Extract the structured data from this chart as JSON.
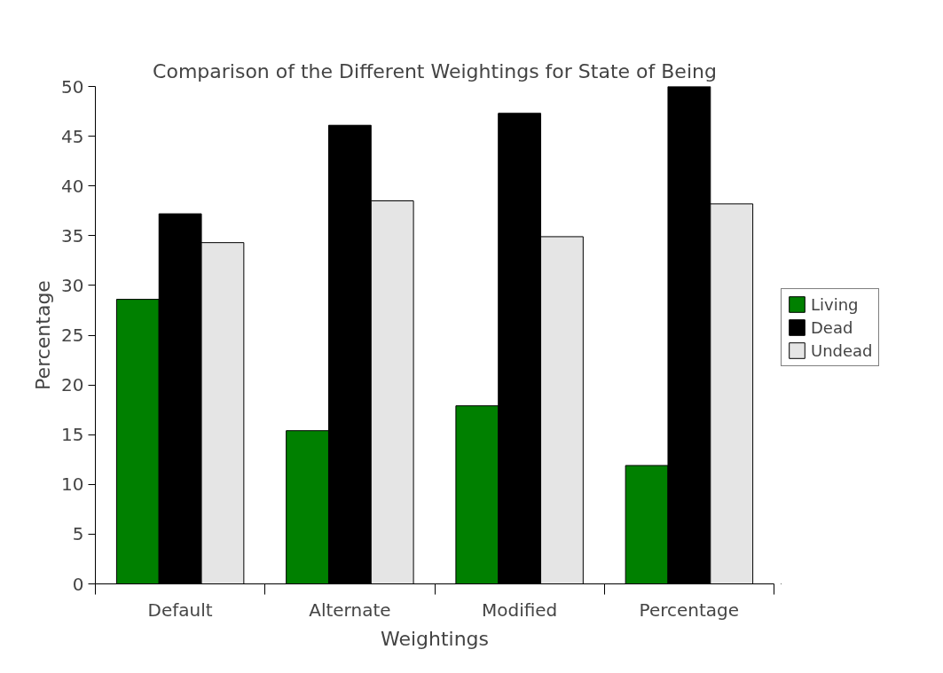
{
  "chart_data": {
    "type": "bar",
    "title": "Comparison of the Different Weightings for State of Being",
    "xlabel": "Weightings",
    "ylabel": "Percentage",
    "categories": [
      "Default",
      "Alternate",
      "Modified",
      "Percentage"
    ],
    "series": [
      {
        "name": "Living",
        "color": "#008000",
        "values": [
          28.6,
          15.4,
          17.9,
          11.9
        ]
      },
      {
        "name": "Dead",
        "color": "#000000",
        "values": [
          37.2,
          46.1,
          47.3,
          50
        ]
      },
      {
        "name": "Undead",
        "color": "#e5e5e5",
        "values": [
          34.3,
          38.5,
          34.9,
          38.2
        ]
      }
    ],
    "ylim": [
      0,
      50
    ],
    "yticks": [
      0,
      5,
      10,
      15,
      20,
      25,
      30,
      35,
      40,
      45,
      50
    ],
    "grid": false,
    "legend": "right"
  }
}
